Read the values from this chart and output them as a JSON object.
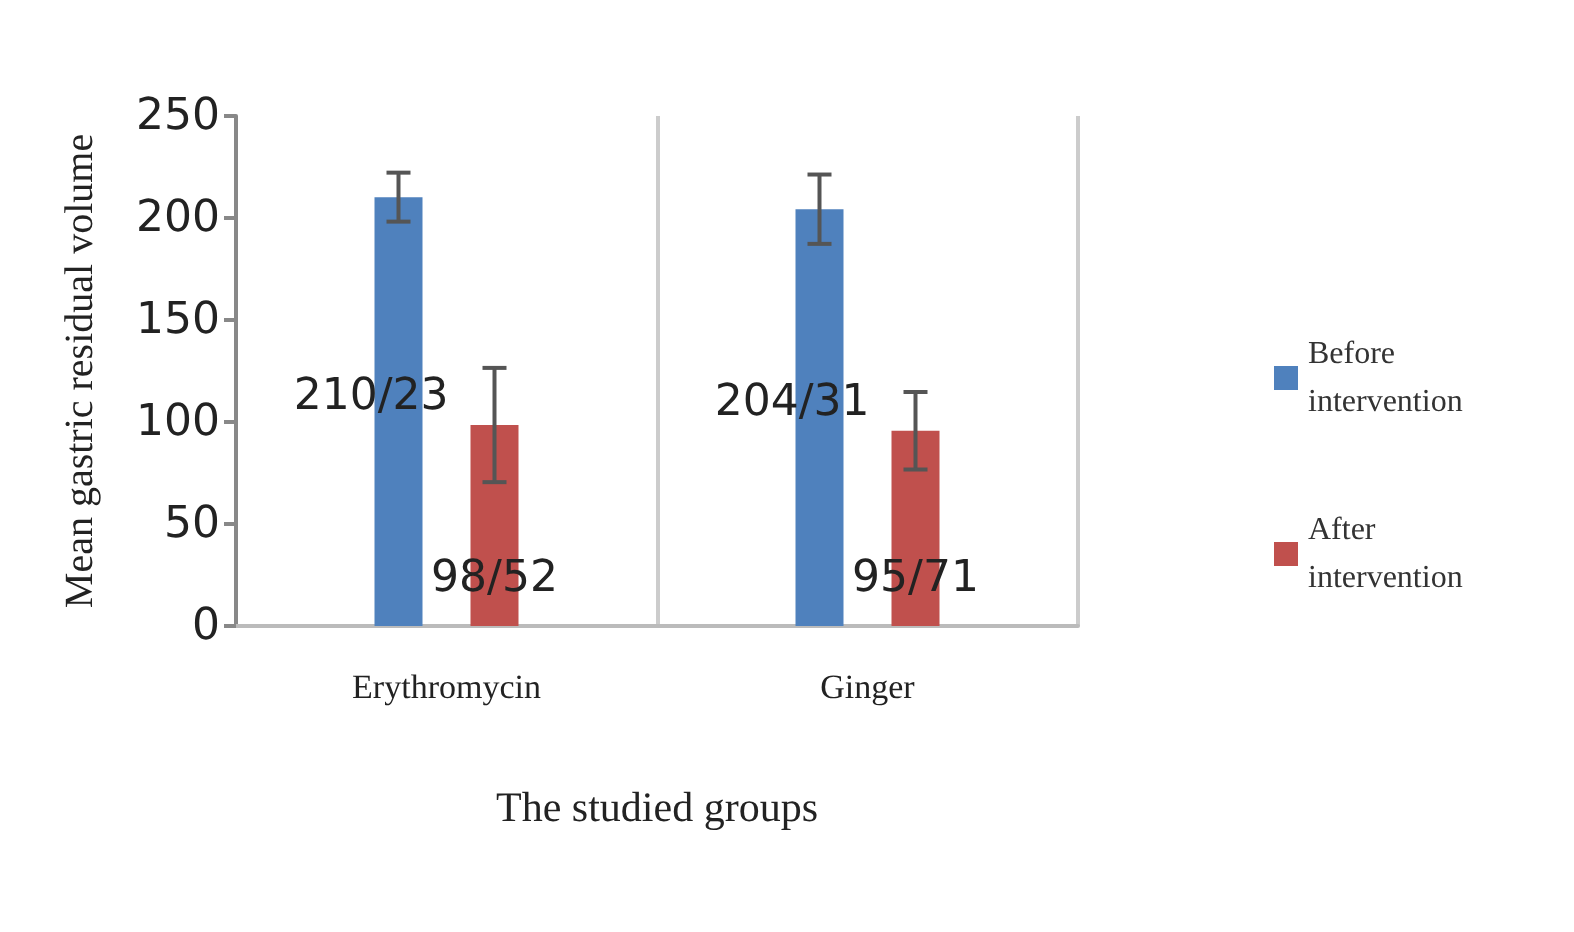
{
  "chart_data": {
    "type": "bar",
    "xlabel": "The studied groups",
    "ylabel": "Mean gastric residual volume",
    "categories": [
      "Erythromycin",
      "Ginger"
    ],
    "series": [
      {
        "name": "Before intervention",
        "color": "#4f81bd",
        "values": [
          210.23,
          204.31
        ],
        "errors": [
          12,
          17
        ],
        "value_labels": [
          "210/23",
          "204/31"
        ]
      },
      {
        "name": "After intervention",
        "color": "#c0504d",
        "values": [
          98.52,
          95.71
        ],
        "errors": [
          28,
          19
        ],
        "value_labels": [
          "98/52",
          "95/71"
        ]
      }
    ],
    "ylim": [
      0,
      250
    ],
    "yticks": [
      0,
      50,
      100,
      150,
      200,
      250
    ],
    "grid": "x",
    "legend": "right"
  }
}
